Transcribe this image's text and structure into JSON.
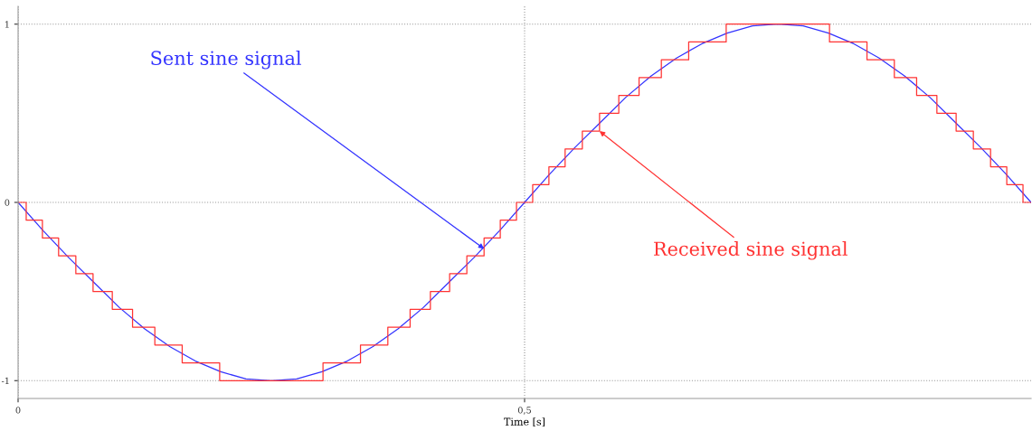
{
  "chart_data": {
    "type": "line",
    "xlabel": "Time [s]",
    "xlim": [
      0,
      1
    ],
    "xticks": [
      0,
      {
        "value": 0.5,
        "label": "0,5"
      }
    ],
    "ylim": [
      -1.1,
      1.1
    ],
    "yticks": [
      -1,
      0,
      1
    ],
    "grid": true,
    "series": [
      {
        "color": "#3333ff",
        "x": [
          0,
          0.025,
          0.05,
          0.075,
          0.1,
          0.125,
          0.15,
          0.175,
          0.2,
          0.225,
          0.25,
          0.275,
          0.3,
          0.325,
          0.35,
          0.375,
          0.4,
          0.425,
          0.45,
          0.475,
          0.5,
          0.525,
          0.55,
          0.575,
          0.6,
          0.625,
          0.65,
          0.675,
          0.7,
          0.725,
          0.75,
          0.775,
          0.8,
          0.825,
          0.85,
          0.875,
          0.9,
          0.925,
          0.95,
          0.975,
          1.0
        ],
        "values": [
          0,
          -0.16,
          -0.31,
          -0.45,
          -0.59,
          -0.71,
          -0.81,
          -0.89,
          -0.95,
          -0.99,
          -1,
          -0.99,
          -0.95,
          -0.89,
          -0.81,
          -0.71,
          -0.59,
          -0.45,
          -0.31,
          -0.16,
          0,
          0.16,
          0.31,
          0.45,
          0.59,
          0.71,
          0.81,
          0.89,
          0.95,
          0.99,
          1,
          0.99,
          0.95,
          0.89,
          0.81,
          0.71,
          0.59,
          0.45,
          0.31,
          0.16,
          0
        ]
      },
      {
        "type": "step",
        "color": "#ff3333",
        "x": [
          0,
          0.008,
          0.024,
          0.04,
          0.057,
          0.074,
          0.093,
          0.113,
          0.135,
          0.162,
          0.199,
          0.301,
          0.338,
          0.365,
          0.387,
          0.407,
          0.426,
          0.443,
          0.46,
          0.476,
          0.492,
          0.508,
          0.524,
          0.54,
          0.557,
          0.574,
          0.593,
          0.613,
          0.635,
          0.662,
          0.699,
          0.801,
          0.838,
          0.865,
          0.887,
          0.907,
          0.926,
          0.943,
          0.96,
          0.976,
          0.992,
          1.0
        ],
        "values": [
          0,
          -0.1,
          -0.2,
          -0.3,
          -0.4,
          -0.5,
          -0.6,
          -0.7,
          -0.8,
          -0.9,
          -1.0,
          -0.9,
          -0.8,
          -0.7,
          -0.6,
          -0.5,
          -0.4,
          -0.3,
          -0.2,
          -0.1,
          0,
          0.1,
          0.2,
          0.3,
          0.4,
          0.5,
          0.6,
          0.7,
          0.8,
          0.9,
          1.0,
          0.9,
          0.8,
          0.7,
          0.6,
          0.5,
          0.4,
          0.3,
          0.2,
          0.1,
          0,
          0
        ]
      }
    ],
    "annotations": [
      {
        "text": "Sent sine signal",
        "x": 0.46,
        "y": -0.26
      },
      {
        "text": "Received sine signal",
        "x": 0.574,
        "y": 0.4
      }
    ]
  }
}
